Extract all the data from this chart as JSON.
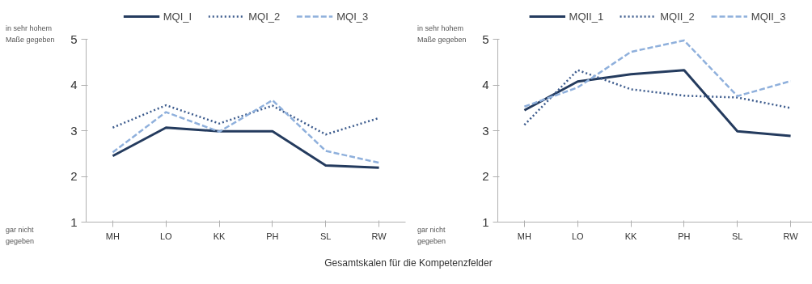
{
  "chart_data": [
    {
      "type": "line",
      "categories": [
        "MH",
        "LO",
        "KK",
        "PH",
        "SL",
        "RW"
      ],
      "ylim": [
        1,
        5
      ],
      "yticks": [
        1,
        2,
        3,
        4,
        5
      ],
      "grid": false,
      "legend": "top",
      "annotations": [
        "in sehr hohem Maße gegeben",
        "gar nicht gegeben",
        "Gesamtskalen für die Kompetenzfelder"
      ],
      "series": [
        {
          "name": "MQI_I",
          "color": "#243b5e",
          "line_style": "solid",
          "values": [
            2.45,
            3.07,
            2.99,
            2.99,
            2.24,
            2.19
          ]
        },
        {
          "name": "MQI_2",
          "color": "#3b5a8c",
          "line_style": "dotted",
          "values": [
            3.07,
            3.56,
            3.16,
            3.55,
            2.92,
            3.28
          ]
        },
        {
          "name": "MQI_3",
          "color": "#8fb0dc",
          "line_style": "dashed",
          "values": [
            2.53,
            3.41,
            2.98,
            3.67,
            2.56,
            2.3
          ]
        }
      ]
    },
    {
      "type": "line",
      "categories": [
        "MH",
        "LO",
        "KK",
        "PH",
        "SL",
        "RW"
      ],
      "ylim": [
        1,
        5
      ],
      "yticks": [
        1,
        2,
        3,
        4,
        5
      ],
      "grid": false,
      "legend": "top",
      "annotations": [
        "in sehr hohem Maße gegeben",
        "gar nicht gegeben"
      ],
      "series": [
        {
          "name": "MQII_1",
          "color": "#243b5e",
          "line_style": "solid",
          "values": [
            3.45,
            4.08,
            4.24,
            4.33,
            2.99,
            2.89
          ]
        },
        {
          "name": "MQII_2",
          "color": "#3b5a8c",
          "line_style": "dotted",
          "values": [
            3.13,
            4.33,
            3.91,
            3.77,
            3.73,
            3.5
          ]
        },
        {
          "name": "MQII_3",
          "color": "#8fb0dc",
          "line_style": "dashed",
          "values": [
            3.53,
            3.95,
            4.73,
            4.98,
            3.76,
            4.09
          ]
        }
      ]
    }
  ]
}
